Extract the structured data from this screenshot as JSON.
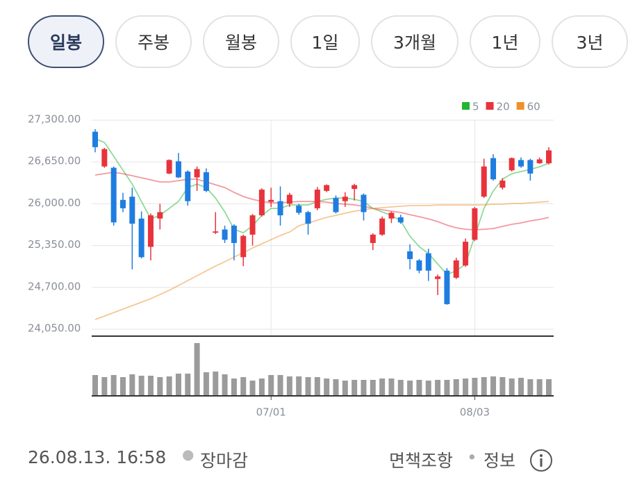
{
  "tabs": [
    "일봉",
    "주봉",
    "월봉",
    "1일",
    "3개월",
    "1년",
    "3년"
  ],
  "selected_tab": 0,
  "chart_data": {
    "type": "candlestick",
    "categories": [
      null,
      null,
      null,
      null,
      null,
      null,
      null,
      null,
      null,
      null,
      null,
      null,
      null,
      null,
      null,
      null,
      null,
      null,
      null,
      "07/01",
      null,
      null,
      null,
      null,
      null,
      null,
      null,
      null,
      null,
      null,
      null,
      null,
      null,
      null,
      null,
      null,
      null,
      null,
      null,
      null,
      null,
      "08/03",
      null,
      null,
      null,
      null,
      null,
      null,
      null,
      null
    ],
    "open": [
      27120,
      26580,
      26560,
      26060,
      26110,
      25770,
      25330,
      25770,
      26470,
      26660,
      26500,
      26410,
      26490,
      25550,
      25600,
      25660,
      25170,
      25520,
      25820,
      26030,
      26040,
      26000,
      25970,
      25870,
      25930,
      26200,
      26090,
      26040,
      26230,
      26140,
      25390,
      25520,
      25770,
      25790,
      25260,
      25120,
      25230,
      24830,
      24960,
      24850,
      25040,
      25440,
      26110,
      26710,
      26250,
      26520,
      26680,
      26680,
      26630,
      26630
    ],
    "high": [
      27160,
      26870,
      26580,
      26170,
      26250,
      25880,
      25850,
      26000,
      26690,
      26790,
      26520,
      26580,
      26550,
      25870,
      25660,
      25680,
      25520,
      25840,
      26240,
      26250,
      26270,
      26170,
      26000,
      25890,
      26260,
      26300,
      26130,
      26180,
      26310,
      26160,
      25540,
      25800,
      25880,
      25830,
      25370,
      25140,
      25300,
      24900,
      25000,
      25160,
      25460,
      25950,
      26700,
      26770,
      26400,
      26720,
      26720,
      26700,
      26720,
      26880
    ],
    "low": [
      26800,
      26560,
      25660,
      25870,
      24980,
      25150,
      25120,
      25600,
      26460,
      26400,
      25970,
      26200,
      26180,
      25530,
      25390,
      25120,
      25030,
      25350,
      25800,
      25950,
      25660,
      25950,
      25830,
      25520,
      25900,
      26180,
      25850,
      25950,
      26050,
      25740,
      25280,
      25500,
      25700,
      25690,
      24980,
      24920,
      24800,
      24580,
      24430,
      24830,
      25020,
      25420,
      26090,
      26360,
      26220,
      26500,
      26560,
      26360,
      26620,
      26610
    ],
    "close": [
      26880,
      26850,
      25710,
      25930,
      25690,
      25170,
      25820,
      25870,
      26680,
      26410,
      26040,
      26540,
      26200,
      25570,
      25440,
      25390,
      25500,
      25820,
      26220,
      26060,
      25820,
      26140,
      25860,
      25690,
      26220,
      26290,
      25870,
      26110,
      26290,
      25870,
      25520,
      25770,
      25860,
      25710,
      25140,
      24960,
      24960,
      24870,
      24440,
      25120,
      25410,
      25930,
      26580,
      26380,
      26360,
      26710,
      26580,
      26470,
      26690,
      26830
    ],
    "volume": [
      30,
      27,
      30,
      27,
      31,
      29,
      29,
      27,
      28,
      32,
      32,
      76,
      34,
      35,
      31,
      25,
      27,
      22,
      25,
      30,
      30,
      28,
      28,
      27,
      27,
      25,
      24,
      22,
      23,
      23,
      23,
      25,
      25,
      23,
      22,
      23,
      22,
      23,
      23,
      24,
      25,
      26,
      27,
      28,
      27,
      25,
      26,
      24,
      24,
      24
    ],
    "up_color": "#e8333b",
    "down_color": "#1f7de0",
    "volume_color": "#9b9b9b",
    "ylim": [
      24050,
      27300
    ],
    "yticks": [
      {
        "value": 24050,
        "label": "24,050.00"
      },
      {
        "value": 24700,
        "label": "24,700.00"
      },
      {
        "value": 25350,
        "label": "25,350.00"
      },
      {
        "value": 26000,
        "label": "26,000.00"
      },
      {
        "value": 26650,
        "label": "26,650.00"
      },
      {
        "value": 27300,
        "label": "27,300.00"
      }
    ],
    "grid": true,
    "series": [
      {
        "name": "5",
        "color": "#22b531",
        "values": [
          27008,
          26954,
          26738,
          26522,
          26306,
          26036,
          25766,
          25820,
          25928,
          26036,
          26252,
          26306,
          26252,
          26090,
          25874,
          25604,
          25550,
          25658,
          25820,
          25928,
          25928,
          25982,
          25982,
          25982,
          26036,
          26069,
          26090,
          26090,
          26069,
          26036,
          25928,
          25874,
          25820,
          25734,
          25496,
          25334,
          25226,
          25064,
          24902,
          24956,
          25064,
          25496,
          25928,
          26198,
          26382,
          26468,
          26501,
          26533,
          26576,
          26630
        ]
      },
      {
        "name": "20",
        "color": "#e8333b",
        "values": [
          26447,
          26468,
          26490,
          26468,
          26436,
          26404,
          26371,
          26339,
          26339,
          26360,
          26382,
          26382,
          26339,
          26296,
          26252,
          26177,
          26112,
          26069,
          26036,
          26015,
          26015,
          26026,
          26036,
          26036,
          26036,
          26026,
          26004,
          25993,
          25982,
          25961,
          25928,
          25907,
          25885,
          25864,
          25831,
          25799,
          25766,
          25723,
          25669,
          25626,
          25604,
          25594,
          25604,
          25615,
          25648,
          25680,
          25702,
          25734,
          25756,
          25788
        ]
      },
      {
        "name": "60",
        "color": "#f0902a",
        "values": [
          24200,
          24254,
          24308,
          24362,
          24416,
          24470,
          24524,
          24589,
          24654,
          24730,
          24805,
          24881,
          24956,
          25032,
          25097,
          25172,
          25237,
          25313,
          25378,
          25442,
          25507,
          25561,
          25658,
          25702,
          25745,
          25788,
          25820,
          25853,
          25885,
          25907,
          25928,
          25939,
          25950,
          25961,
          25972,
          25972,
          25972,
          25982,
          25982,
          25982,
          25982,
          25982,
          25982,
          25993,
          25993,
          26004,
          26004,
          26015,
          26026,
          26036
        ]
      }
    ]
  },
  "footer": {
    "timestamp": "26.08.13. 16:58",
    "status": "장마감",
    "disclaimer": "면책조항",
    "info": "정보"
  }
}
